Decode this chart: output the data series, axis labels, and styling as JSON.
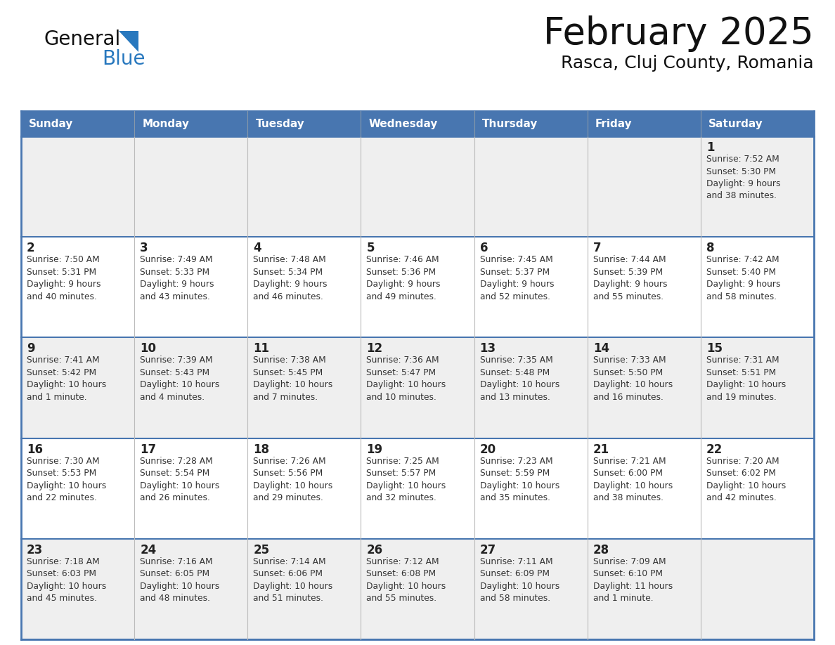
{
  "title": "February 2025",
  "subtitle": "Rasca, Cluj County, Romania",
  "days_of_week": [
    "Sunday",
    "Monday",
    "Tuesday",
    "Wednesday",
    "Thursday",
    "Friday",
    "Saturday"
  ],
  "header_bg": "#4876B0",
  "header_text": "#FFFFFF",
  "row_bg_odd": "#EFEFEF",
  "row_bg_even": "#FFFFFF",
  "cell_border_color": "#4876B0",
  "cell_inner_border": "#CCCCCC",
  "day_num_color": "#222222",
  "info_text_color": "#333333",
  "title_color": "#111111",
  "subtitle_color": "#111111",
  "logo_general_color": "#111111",
  "logo_blue_color": "#2878BE",
  "logo_triangle_color": "#2878BE",
  "weeks": [
    {
      "days": [
        {
          "date": null,
          "info": null
        },
        {
          "date": null,
          "info": null
        },
        {
          "date": null,
          "info": null
        },
        {
          "date": null,
          "info": null
        },
        {
          "date": null,
          "info": null
        },
        {
          "date": null,
          "info": null
        },
        {
          "date": 1,
          "info": "Sunrise: 7:52 AM\nSunset: 5:30 PM\nDaylight: 9 hours\nand 38 minutes."
        }
      ]
    },
    {
      "days": [
        {
          "date": 2,
          "info": "Sunrise: 7:50 AM\nSunset: 5:31 PM\nDaylight: 9 hours\nand 40 minutes."
        },
        {
          "date": 3,
          "info": "Sunrise: 7:49 AM\nSunset: 5:33 PM\nDaylight: 9 hours\nand 43 minutes."
        },
        {
          "date": 4,
          "info": "Sunrise: 7:48 AM\nSunset: 5:34 PM\nDaylight: 9 hours\nand 46 minutes."
        },
        {
          "date": 5,
          "info": "Sunrise: 7:46 AM\nSunset: 5:36 PM\nDaylight: 9 hours\nand 49 minutes."
        },
        {
          "date": 6,
          "info": "Sunrise: 7:45 AM\nSunset: 5:37 PM\nDaylight: 9 hours\nand 52 minutes."
        },
        {
          "date": 7,
          "info": "Sunrise: 7:44 AM\nSunset: 5:39 PM\nDaylight: 9 hours\nand 55 minutes."
        },
        {
          "date": 8,
          "info": "Sunrise: 7:42 AM\nSunset: 5:40 PM\nDaylight: 9 hours\nand 58 minutes."
        }
      ]
    },
    {
      "days": [
        {
          "date": 9,
          "info": "Sunrise: 7:41 AM\nSunset: 5:42 PM\nDaylight: 10 hours\nand 1 minute."
        },
        {
          "date": 10,
          "info": "Sunrise: 7:39 AM\nSunset: 5:43 PM\nDaylight: 10 hours\nand 4 minutes."
        },
        {
          "date": 11,
          "info": "Sunrise: 7:38 AM\nSunset: 5:45 PM\nDaylight: 10 hours\nand 7 minutes."
        },
        {
          "date": 12,
          "info": "Sunrise: 7:36 AM\nSunset: 5:47 PM\nDaylight: 10 hours\nand 10 minutes."
        },
        {
          "date": 13,
          "info": "Sunrise: 7:35 AM\nSunset: 5:48 PM\nDaylight: 10 hours\nand 13 minutes."
        },
        {
          "date": 14,
          "info": "Sunrise: 7:33 AM\nSunset: 5:50 PM\nDaylight: 10 hours\nand 16 minutes."
        },
        {
          "date": 15,
          "info": "Sunrise: 7:31 AM\nSunset: 5:51 PM\nDaylight: 10 hours\nand 19 minutes."
        }
      ]
    },
    {
      "days": [
        {
          "date": 16,
          "info": "Sunrise: 7:30 AM\nSunset: 5:53 PM\nDaylight: 10 hours\nand 22 minutes."
        },
        {
          "date": 17,
          "info": "Sunrise: 7:28 AM\nSunset: 5:54 PM\nDaylight: 10 hours\nand 26 minutes."
        },
        {
          "date": 18,
          "info": "Sunrise: 7:26 AM\nSunset: 5:56 PM\nDaylight: 10 hours\nand 29 minutes."
        },
        {
          "date": 19,
          "info": "Sunrise: 7:25 AM\nSunset: 5:57 PM\nDaylight: 10 hours\nand 32 minutes."
        },
        {
          "date": 20,
          "info": "Sunrise: 7:23 AM\nSunset: 5:59 PM\nDaylight: 10 hours\nand 35 minutes."
        },
        {
          "date": 21,
          "info": "Sunrise: 7:21 AM\nSunset: 6:00 PM\nDaylight: 10 hours\nand 38 minutes."
        },
        {
          "date": 22,
          "info": "Sunrise: 7:20 AM\nSunset: 6:02 PM\nDaylight: 10 hours\nand 42 minutes."
        }
      ]
    },
    {
      "days": [
        {
          "date": 23,
          "info": "Sunrise: 7:18 AM\nSunset: 6:03 PM\nDaylight: 10 hours\nand 45 minutes."
        },
        {
          "date": 24,
          "info": "Sunrise: 7:16 AM\nSunset: 6:05 PM\nDaylight: 10 hours\nand 48 minutes."
        },
        {
          "date": 25,
          "info": "Sunrise: 7:14 AM\nSunset: 6:06 PM\nDaylight: 10 hours\nand 51 minutes."
        },
        {
          "date": 26,
          "info": "Sunrise: 7:12 AM\nSunset: 6:08 PM\nDaylight: 10 hours\nand 55 minutes."
        },
        {
          "date": 27,
          "info": "Sunrise: 7:11 AM\nSunset: 6:09 PM\nDaylight: 10 hours\nand 58 minutes."
        },
        {
          "date": 28,
          "info": "Sunrise: 7:09 AM\nSunset: 6:10 PM\nDaylight: 11 hours\nand 1 minute."
        },
        {
          "date": null,
          "info": null
        }
      ]
    }
  ]
}
